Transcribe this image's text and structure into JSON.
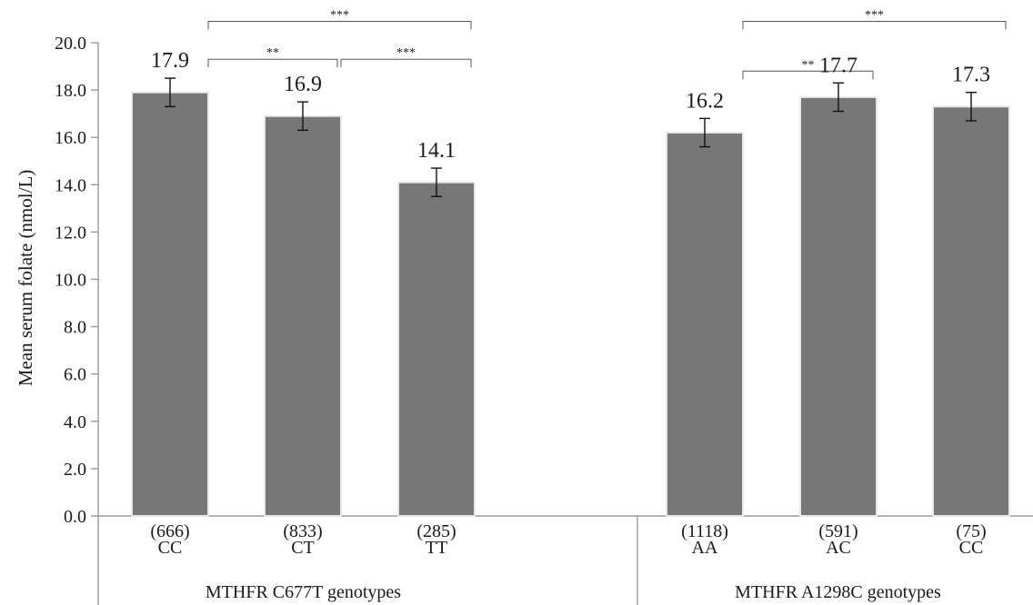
{
  "chart_data": {
    "type": "bar",
    "ylabel": "Mean serum folate (nmol/L)",
    "ylim": [
      0,
      20
    ],
    "ytick_step": 2,
    "grid": false,
    "groups": [
      {
        "label": "MTHFR C677T genotypes",
        "bars": [
          {
            "category": "CC",
            "n": "(666)",
            "value": 17.9,
            "error": 0.6,
            "label": "17.9"
          },
          {
            "category": "CT",
            "n": "(833)",
            "value": 16.9,
            "error": 0.6,
            "label": "16.9"
          },
          {
            "category": "TT",
            "n": "(285)",
            "value": 14.1,
            "error": 0.6,
            "label": "14.1"
          }
        ]
      },
      {
        "label": "MTHFR A1298C genotypes",
        "bars": [
          {
            "category": "AA",
            "n": "(1118)",
            "value": 16.2,
            "error": 0.6,
            "label": "16.2"
          },
          {
            "category": "AC",
            "n": "(591)",
            "value": 17.7,
            "error": 0.6,
            "label": "17.7"
          },
          {
            "category": "CC",
            "n": "(75)",
            "value": 17.3,
            "error": 0.6,
            "label": "17.3"
          }
        ]
      }
    ],
    "significance": [
      {
        "group": 0,
        "from": 0,
        "to": 2,
        "label": "***",
        "level": 20.9
      },
      {
        "group": 0,
        "from": 0,
        "to": 1,
        "label": "**",
        "level": 19.3
      },
      {
        "group": 0,
        "from": 1,
        "to": 2,
        "label": "***",
        "level": 19.3
      },
      {
        "group": 1,
        "from": 0,
        "to": 2,
        "label": "***",
        "level": 20.9
      },
      {
        "group": 1,
        "from": 0,
        "to": 1,
        "label": "**",
        "level": 18.8
      }
    ],
    "colors": {
      "bar": "#777777",
      "bar_edge": "#e8e8e8",
      "axis": "#9a9a9a"
    }
  }
}
